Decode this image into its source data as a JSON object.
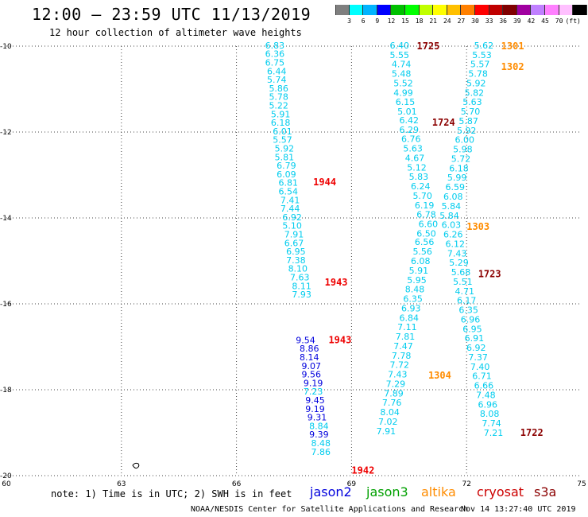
{
  "header": {
    "title": "12:00 – 23:59 UTC 11/13/2019",
    "subtitle": "12 hour collection of altimeter wave heights"
  },
  "colorbar": {
    "colors": [
      "#7f7f7f",
      "#00ffff",
      "#00b4ff",
      "#0000ff",
      "#00c000",
      "#00ff00",
      "#c0ff00",
      "#ffff00",
      "#ffc000",
      "#ff8000",
      "#ff0000",
      "#c00000",
      "#800000",
      "#a000a0",
      "#c080ff",
      "#ff80ff",
      "#ffc0ff",
      "#000000"
    ],
    "labels": [
      "3",
      "6",
      "9",
      "12",
      "15",
      "18",
      "21",
      "24",
      "27",
      "30",
      "33",
      "36",
      "39",
      "42",
      "45",
      "70",
      "(ft)"
    ]
  },
  "footer": {
    "note": "note: 1) Time is in UTC; 2) SWH is in feet",
    "credit": "NOAA/NESDIS Center for Satellite Applications and Research",
    "timestamp": "Nov 14 13:27:40 UTC 2019"
  },
  "legend": [
    {
      "name": "jason2",
      "color": "#0000dd"
    },
    {
      "name": "jason3",
      "color": "#00a000"
    },
    {
      "name": "altika",
      "color": "#ff8c00"
    },
    {
      "name": "cryosat",
      "color": "#cc0000"
    },
    {
      "name": "s3a",
      "color": "#8b0000"
    }
  ],
  "chart_data": {
    "type": "scatter",
    "xlim": [
      60,
      75
    ],
    "ylim": [
      -20,
      -10
    ],
    "x_ticks": [
      60,
      63,
      66,
      69,
      72,
      75
    ],
    "y_ticks": [
      -10,
      -12,
      -14,
      -16,
      -18,
      -20
    ],
    "grid": true,
    "time_labels": [
      {
        "text": "1725",
        "x": 71.0,
        "y": -10.0,
        "color": "#8b0000"
      },
      {
        "text": "1301",
        "x": 73.2,
        "y": -10.0,
        "color": "#ff8c00"
      },
      {
        "text": "1302",
        "x": 73.2,
        "y": -10.48,
        "color": "#ff8c00"
      },
      {
        "text": "1724",
        "x": 71.4,
        "y": -11.78,
        "color": "#8b0000"
      },
      {
        "text": "1944",
        "x": 68.3,
        "y": -13.17,
        "color": "#ee0000"
      },
      {
        "text": "1303",
        "x": 72.3,
        "y": -14.2,
        "color": "#ff8c00"
      },
      {
        "text": "1723",
        "x": 72.6,
        "y": -15.31,
        "color": "#8b0000"
      },
      {
        "text": "1943",
        "x": 68.6,
        "y": -15.5,
        "color": "#ee0000"
      },
      {
        "text": "1943",
        "x": 68.7,
        "y": -16.84,
        "color": "#ee0000"
      },
      {
        "text": "1304",
        "x": 71.3,
        "y": -17.67,
        "color": "#ff8c00"
      },
      {
        "text": "1722",
        "x": 73.7,
        "y": -19.0,
        "color": "#8b0000"
      },
      {
        "text": "1942",
        "x": 69.3,
        "y": -19.88,
        "color": "#ee0000"
      }
    ],
    "series": [
      {
        "name": "jason2",
        "color": "#0000dd",
        "points": [
          {
            "x": 67.8,
            "y": -16.84,
            "v": "9.54"
          },
          {
            "x": 67.9,
            "y": -17.04,
            "v": "8.86"
          },
          {
            "x": 67.9,
            "y": -17.24,
            "v": "8.14"
          },
          {
            "x": 67.95,
            "y": -17.44,
            "v": "9.07"
          },
          {
            "x": 67.95,
            "y": -17.64,
            "v": "9.56"
          },
          {
            "x": 68.0,
            "y": -17.84,
            "v": "9.19"
          },
          {
            "x": 68.05,
            "y": -18.24,
            "v": "9.45"
          },
          {
            "x": 68.05,
            "y": -18.44,
            "v": "9.19"
          },
          {
            "x": 68.1,
            "y": -18.64,
            "v": "9.31"
          },
          {
            "x": 68.15,
            "y": -19.04,
            "v": "9.39"
          }
        ]
      },
      {
        "name": "cyan-low",
        "color": "#00ccee",
        "points": [
          {
            "x": 67.0,
            "y": -9.98,
            "v": "6.83"
          },
          {
            "x": 67.0,
            "y": -10.18,
            "v": "6.36"
          },
          {
            "x": 67.0,
            "y": -10.38,
            "v": "6.75"
          },
          {
            "x": 67.05,
            "y": -10.58,
            "v": "6.44"
          },
          {
            "x": 67.05,
            "y": -10.78,
            "v": "5.74"
          },
          {
            "x": 67.1,
            "y": -10.98,
            "v": "5.86"
          },
          {
            "x": 67.1,
            "y": -11.18,
            "v": "5.78"
          },
          {
            "x": 67.1,
            "y": -11.38,
            "v": "5.22"
          },
          {
            "x": 67.15,
            "y": -11.58,
            "v": "5.91"
          },
          {
            "x": 67.15,
            "y": -11.78,
            "v": "6.18"
          },
          {
            "x": 67.2,
            "y": -11.98,
            "v": "6.01"
          },
          {
            "x": 67.2,
            "y": -12.18,
            "v": "5.57"
          },
          {
            "x": 67.25,
            "y": -12.38,
            "v": "5.92"
          },
          {
            "x": 67.25,
            "y": -12.58,
            "v": "5.81"
          },
          {
            "x": 67.3,
            "y": -12.78,
            "v": "6.79"
          },
          {
            "x": 67.3,
            "y": -12.98,
            "v": "6.09"
          },
          {
            "x": 67.35,
            "y": -13.18,
            "v": "6.81"
          },
          {
            "x": 67.35,
            "y": -13.38,
            "v": "6.54"
          },
          {
            "x": 67.4,
            "y": -13.58,
            "v": "7.41"
          },
          {
            "x": 67.4,
            "y": -13.78,
            "v": "7.44"
          },
          {
            "x": 67.45,
            "y": -13.98,
            "v": "6.92"
          },
          {
            "x": 67.45,
            "y": -14.18,
            "v": "5.10"
          },
          {
            "x": 67.5,
            "y": -14.38,
            "v": "7.91"
          },
          {
            "x": 67.5,
            "y": -14.58,
            "v": "6.67"
          },
          {
            "x": 67.55,
            "y": -14.78,
            "v": "6.95"
          },
          {
            "x": 67.55,
            "y": -14.98,
            "v": "7.38"
          },
          {
            "x": 67.6,
            "y": -15.18,
            "v": "8.10"
          },
          {
            "x": 67.65,
            "y": -15.38,
            "v": "7.63"
          },
          {
            "x": 67.7,
            "y": -15.58,
            "v": "8.11"
          },
          {
            "x": 67.7,
            "y": -15.78,
            "v": "7.93"
          },
          {
            "x": 68.0,
            "y": -18.04,
            "v": "7.23"
          },
          {
            "x": 68.15,
            "y": -18.84,
            "v": "8.84"
          },
          {
            "x": 68.2,
            "y": -19.24,
            "v": "8.48"
          },
          {
            "x": 68.2,
            "y": -19.44,
            "v": "7.86"
          }
        ]
      },
      {
        "name": "cyan-mid",
        "color": "#00ccee",
        "points": [
          {
            "x": 70.25,
            "y": -9.98,
            "v": "6.40"
          },
          {
            "x": 70.25,
            "y": -10.2,
            "v": "5.55"
          },
          {
            "x": 70.3,
            "y": -10.42,
            "v": "4.74"
          },
          {
            "x": 70.3,
            "y": -10.64,
            "v": "5.48"
          },
          {
            "x": 70.35,
            "y": -10.86,
            "v": "5.52"
          },
          {
            "x": 70.35,
            "y": -11.08,
            "v": "4.99"
          },
          {
            "x": 70.4,
            "y": -11.3,
            "v": "6.15"
          },
          {
            "x": 70.45,
            "y": -11.52,
            "v": "5.01"
          },
          {
            "x": 70.5,
            "y": -11.72,
            "v": "6.42"
          },
          {
            "x": 70.5,
            "y": -11.94,
            "v": "6.29"
          },
          {
            "x": 70.55,
            "y": -12.16,
            "v": "6.76"
          },
          {
            "x": 70.6,
            "y": -12.38,
            "v": "5.63"
          },
          {
            "x": 70.65,
            "y": -12.6,
            "v": "4.67"
          },
          {
            "x": 70.7,
            "y": -12.82,
            "v": "5.12"
          },
          {
            "x": 70.75,
            "y": -13.04,
            "v": "5.83"
          },
          {
            "x": 70.8,
            "y": -13.26,
            "v": "6.24"
          },
          {
            "x": 70.85,
            "y": -13.48,
            "v": "5.70"
          },
          {
            "x": 70.9,
            "y": -13.7,
            "v": "6.19"
          },
          {
            "x": 70.95,
            "y": -13.92,
            "v": "6.78"
          },
          {
            "x": 71.0,
            "y": -14.14,
            "v": "6.60"
          },
          {
            "x": 70.95,
            "y": -14.36,
            "v": "6.50"
          },
          {
            "x": 70.9,
            "y": -14.56,
            "v": "6.56"
          },
          {
            "x": 70.85,
            "y": -14.78,
            "v": "5.56"
          },
          {
            "x": 70.8,
            "y": -15.0,
            "v": "6.08"
          },
          {
            "x": 70.75,
            "y": -15.22,
            "v": "5.91"
          },
          {
            "x": 70.7,
            "y": -15.44,
            "v": "5.95"
          },
          {
            "x": 70.65,
            "y": -15.66,
            "v": "8.48"
          },
          {
            "x": 70.6,
            "y": -15.88,
            "v": "6.35"
          },
          {
            "x": 70.55,
            "y": -16.1,
            "v": "6.93"
          },
          {
            "x": 70.5,
            "y": -16.32,
            "v": "6.84"
          },
          {
            "x": 70.45,
            "y": -16.54,
            "v": "7.11"
          },
          {
            "x": 70.4,
            "y": -16.76,
            "v": "7.81"
          },
          {
            "x": 70.35,
            "y": -16.98,
            "v": "7.47"
          },
          {
            "x": 70.3,
            "y": -17.2,
            "v": "7.78"
          },
          {
            "x": 70.25,
            "y": -17.42,
            "v": "7.72"
          },
          {
            "x": 70.2,
            "y": -17.64,
            "v": "7.43"
          },
          {
            "x": 70.15,
            "y": -17.86,
            "v": "7.29"
          },
          {
            "x": 70.1,
            "y": -18.08,
            "v": "7.89"
          },
          {
            "x": 70.05,
            "y": -18.3,
            "v": "7.76"
          },
          {
            "x": 70.0,
            "y": -18.52,
            "v": "8.04"
          },
          {
            "x": 69.95,
            "y": -18.74,
            "v": "7.02"
          },
          {
            "x": 69.9,
            "y": -18.96,
            "v": "7.91"
          }
        ]
      },
      {
        "name": "cyan-high",
        "color": "#00ccee",
        "points": [
          {
            "x": 72.45,
            "y": -9.98,
            "v": "5.62"
          },
          {
            "x": 72.4,
            "y": -10.2,
            "v": "5.53"
          },
          {
            "x": 72.35,
            "y": -10.42,
            "v": "5.57"
          },
          {
            "x": 72.3,
            "y": -10.64,
            "v": "5.78"
          },
          {
            "x": 72.25,
            "y": -10.86,
            "v": "5.92"
          },
          {
            "x": 72.2,
            "y": -11.08,
            "v": "5.82"
          },
          {
            "x": 72.15,
            "y": -11.3,
            "v": "5.63"
          },
          {
            "x": 72.1,
            "y": -11.52,
            "v": "5.70"
          },
          {
            "x": 72.05,
            "y": -11.74,
            "v": "5.87"
          },
          {
            "x": 72.0,
            "y": -11.96,
            "v": "5.92"
          },
          {
            "x": 71.95,
            "y": -12.18,
            "v": "6.00"
          },
          {
            "x": 71.9,
            "y": -12.4,
            "v": "5.98"
          },
          {
            "x": 71.85,
            "y": -12.62,
            "v": "5.72"
          },
          {
            "x": 71.8,
            "y": -12.84,
            "v": "6.18"
          },
          {
            "x": 71.75,
            "y": -13.06,
            "v": "5.99"
          },
          {
            "x": 71.7,
            "y": -13.28,
            "v": "6.59"
          },
          {
            "x": 71.65,
            "y": -13.5,
            "v": "6.08"
          },
          {
            "x": 71.6,
            "y": -13.72,
            "v": "5.84"
          },
          {
            "x": 71.55,
            "y": -13.94,
            "v": "5.84"
          },
          {
            "x": 71.6,
            "y": -14.16,
            "v": "6.03"
          },
          {
            "x": 71.65,
            "y": -14.38,
            "v": "6.26"
          },
          {
            "x": 71.7,
            "y": -14.6,
            "v": "6.12"
          },
          {
            "x": 71.75,
            "y": -14.82,
            "v": "7.43"
          },
          {
            "x": 71.8,
            "y": -15.04,
            "v": "5.29"
          },
          {
            "x": 71.85,
            "y": -15.26,
            "v": "5.68"
          },
          {
            "x": 71.9,
            "y": -15.48,
            "v": "5.51"
          },
          {
            "x": 71.95,
            "y": -15.7,
            "v": "4.71"
          },
          {
            "x": 72.0,
            "y": -15.92,
            "v": "6.17"
          },
          {
            "x": 72.05,
            "y": -16.14,
            "v": "6.35"
          },
          {
            "x": 72.1,
            "y": -16.36,
            "v": "6.96"
          },
          {
            "x": 72.15,
            "y": -16.58,
            "v": "6.95"
          },
          {
            "x": 72.2,
            "y": -16.8,
            "v": "6.91"
          },
          {
            "x": 72.25,
            "y": -17.02,
            "v": "6.92"
          },
          {
            "x": 72.3,
            "y": -17.24,
            "v": "7.37"
          },
          {
            "x": 72.35,
            "y": -17.46,
            "v": "7.40"
          },
          {
            "x": 72.4,
            "y": -17.68,
            "v": "6.71"
          },
          {
            "x": 72.45,
            "y": -17.9,
            "v": "6.66"
          },
          {
            "x": 72.5,
            "y": -18.12,
            "v": "7.48"
          },
          {
            "x": 72.55,
            "y": -18.34,
            "v": "6.96"
          },
          {
            "x": 72.6,
            "y": -18.56,
            "v": "8.08"
          },
          {
            "x": 72.65,
            "y": -18.78,
            "v": "7.74"
          },
          {
            "x": 72.7,
            "y": -19.0,
            "v": "7.21"
          }
        ]
      }
    ]
  }
}
